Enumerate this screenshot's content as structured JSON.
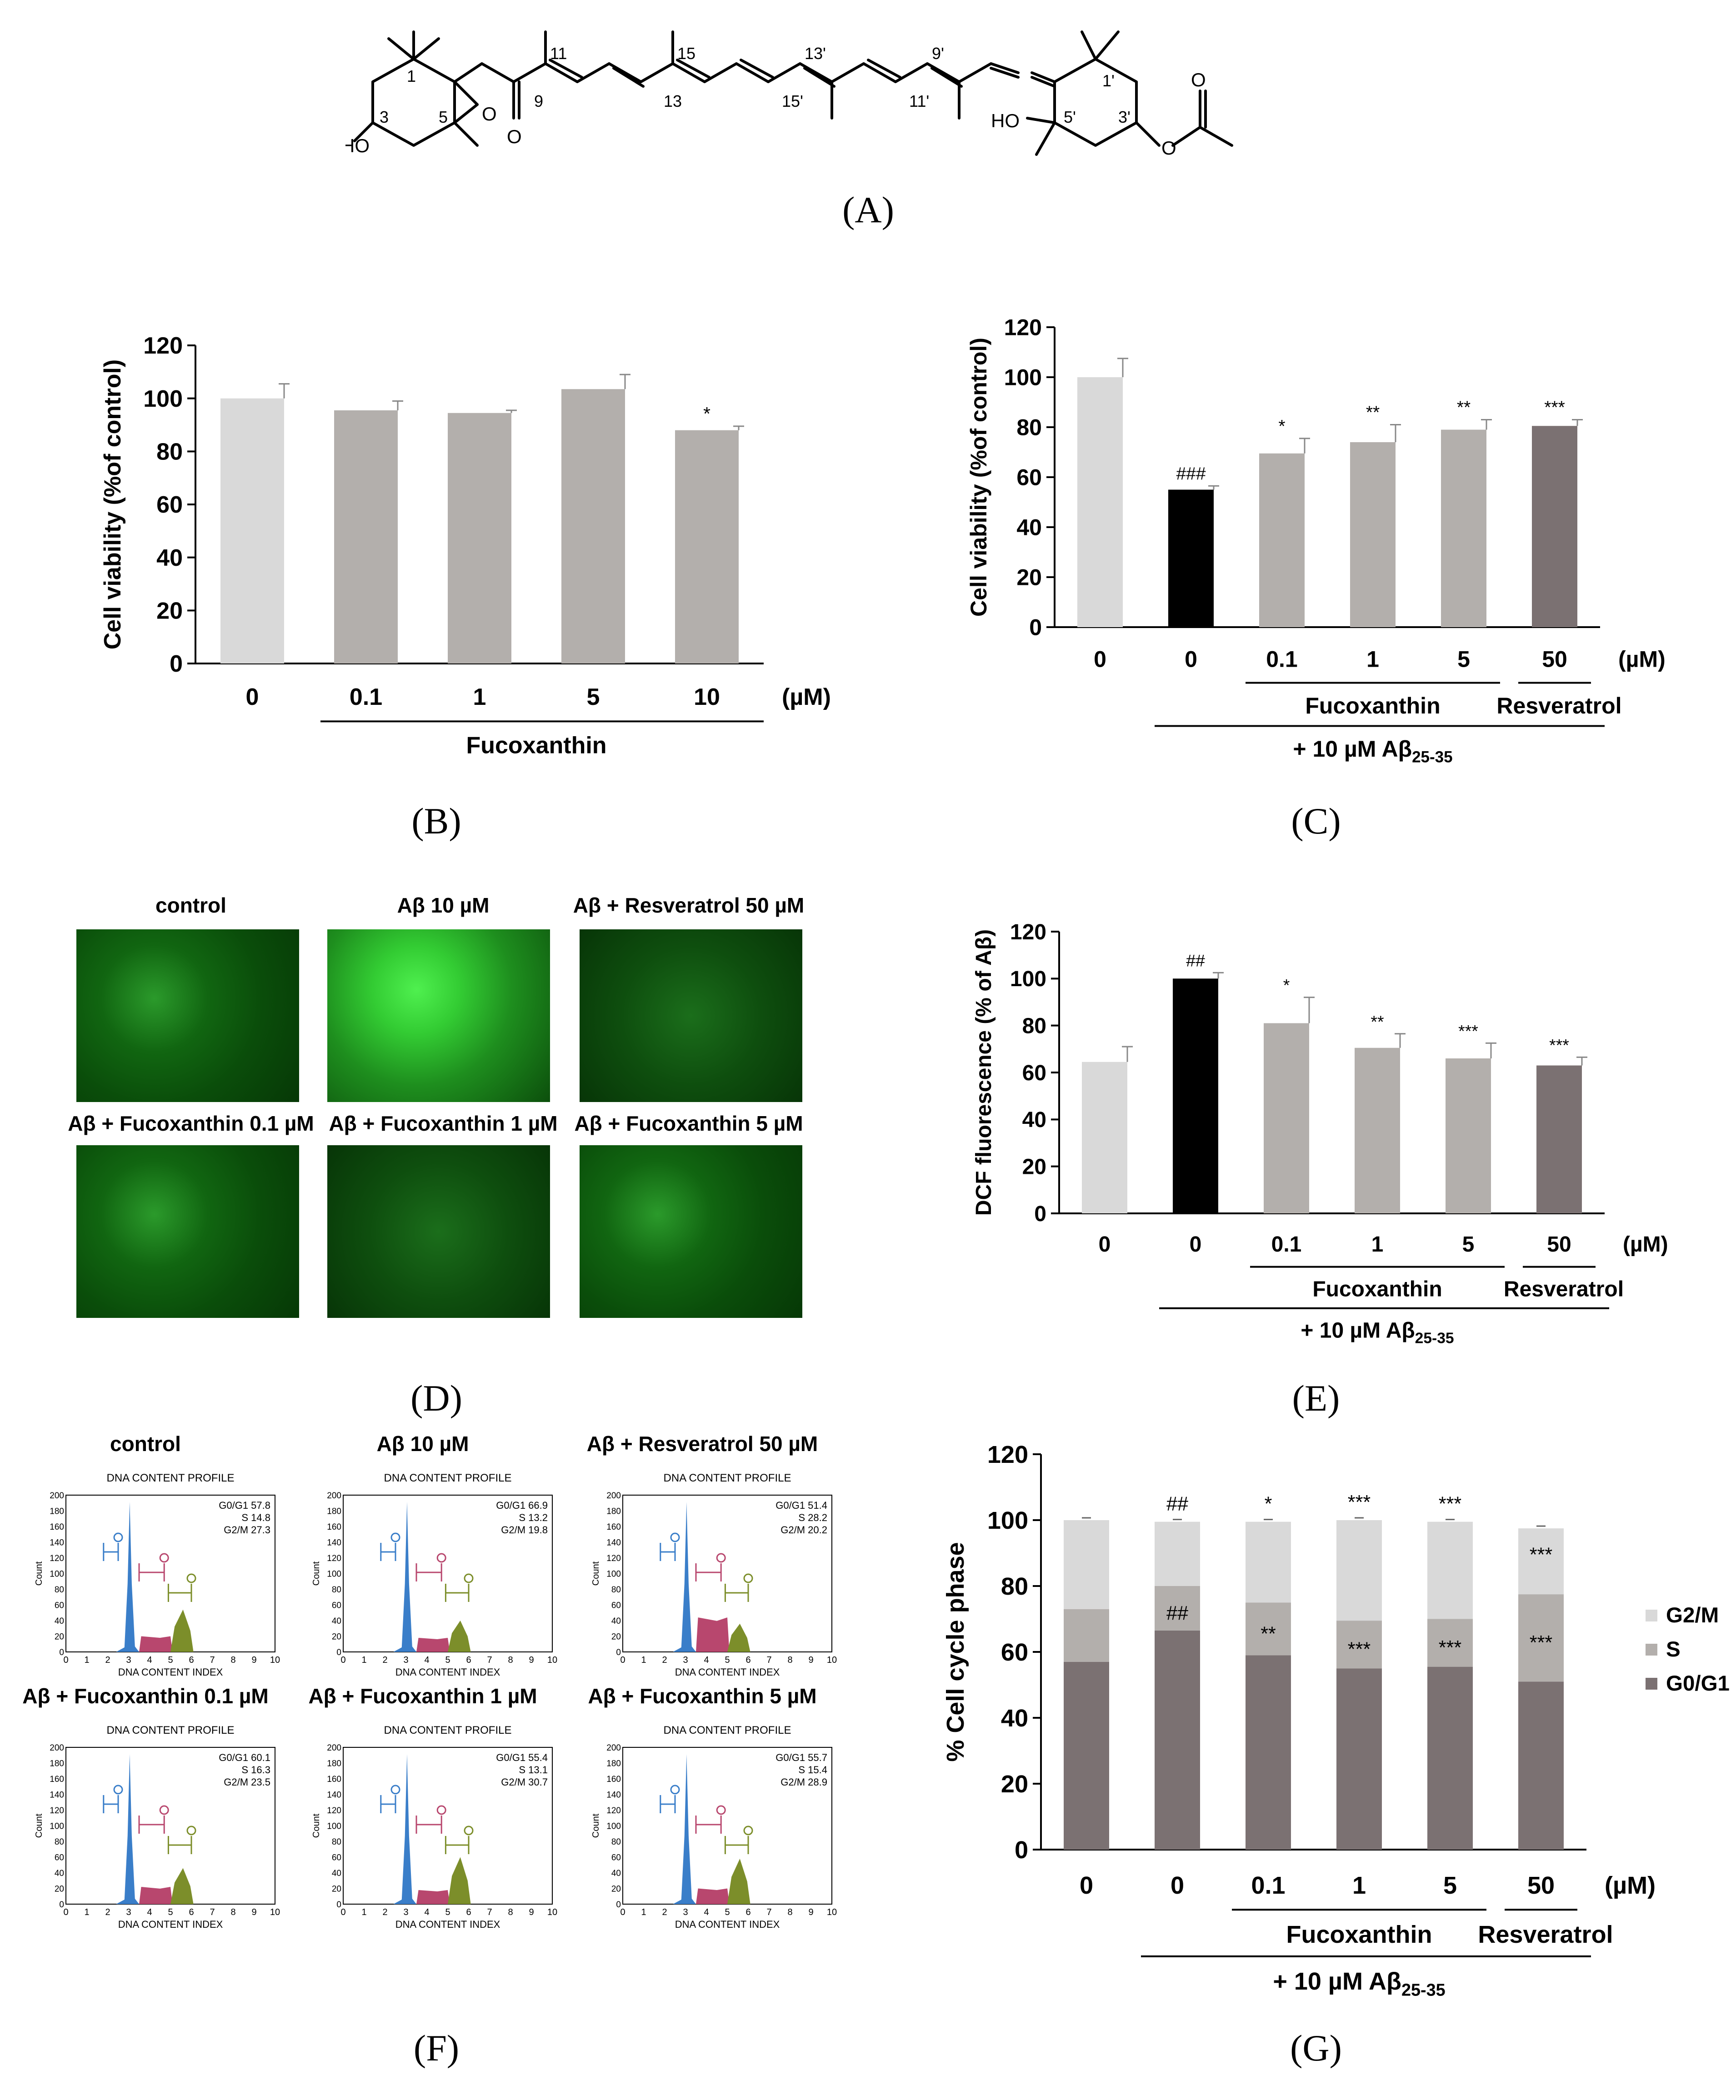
{
  "panels": {
    "A": "(A)",
    "B": "(B)",
    "C": "(C)",
    "D": "(D)",
    "E": "(E)",
    "F": "(F)",
    "G": "(G)"
  },
  "structure": {
    "labels": [
      "11",
      "15",
      "13'",
      "9'",
      "9",
      "13",
      "15'",
      "11'",
      "1",
      "3",
      "5",
      "1'",
      "5'",
      "3'"
    ],
    "atoms": [
      "O",
      "O",
      "O",
      "O",
      "HO",
      "HO"
    ]
  },
  "chart_B": {
    "type": "bar",
    "ylabel": "Cell viability (%of control)",
    "ylim": [
      0,
      120
    ],
    "yticks": [
      "0",
      "20",
      "40",
      "60",
      "80",
      "100",
      "120"
    ],
    "categories": [
      "0",
      "0.1",
      "1",
      "5",
      "10"
    ],
    "values": [
      100,
      95.5,
      94.5,
      103.5,
      88
    ],
    "errors": [
      5.5,
      3.5,
      1,
      5.5,
      1.5
    ],
    "colors": [
      "#d9d9d9",
      "#b3afac",
      "#b3afac",
      "#b3afac",
      "#b3afac"
    ],
    "annotations": [
      "",
      "",
      "",
      "",
      "*"
    ],
    "unit": "(µM)",
    "group_label": "Fucoxanthin"
  },
  "chart_C": {
    "type": "bar",
    "ylabel": "Cell viability (%of control)",
    "ylim": [
      0,
      120
    ],
    "yticks": [
      "0",
      "20",
      "40",
      "60",
      "80",
      "100",
      "120"
    ],
    "categories": [
      "0",
      "0",
      "0.1",
      "1",
      "5",
      "50"
    ],
    "values": [
      100,
      55,
      69.5,
      74,
      79,
      80.5
    ],
    "errors": [
      7.5,
      1.5,
      6,
      7,
      4,
      2.5
    ],
    "colors": [
      "#d9d9d9",
      "#000000",
      "#b3afac",
      "#b3afac",
      "#b3afac",
      "#7b7172"
    ],
    "annotations": [
      "",
      "###",
      "*",
      "**",
      "**",
      "***"
    ],
    "unit": "(µM)",
    "group1": "Fucoxanthin",
    "group2": "Resveratrol",
    "treatment": "+ 10 µM Aβ",
    "treatment_sub": "25-35"
  },
  "micrographs": {
    "titles": [
      "control",
      "Aβ 10 µM",
      "Aβ + Resveratrol 50 µM",
      "Aβ + Fucoxanthin 0.1 µM",
      "Aβ + Fucoxanthin 1 µM",
      "Aβ + Fucoxanthin 5 µM"
    ]
  },
  "chart_E": {
    "type": "bar",
    "ylabel": "DCF fluorescence (% of Aβ)",
    "ylim": [
      0,
      120
    ],
    "yticks": [
      "0",
      "20",
      "40",
      "60",
      "80",
      "100",
      "120"
    ],
    "categories": [
      "0",
      "0",
      "0.1",
      "1",
      "5",
      "50"
    ],
    "values": [
      64.5,
      100,
      81,
      70.5,
      66,
      63
    ],
    "errors": [
      6.5,
      2.5,
      11,
      6,
      6.5,
      3.5
    ],
    "colors": [
      "#d9d9d9",
      "#000000",
      "#b3afac",
      "#b3afac",
      "#b3afac",
      "#7b7172"
    ],
    "annotations": [
      "",
      "##",
      "*",
      "**",
      "***",
      "***"
    ],
    "unit": "(µM)",
    "group1": "Fucoxanthin",
    "group2": "Resveratrol",
    "treatment": "+ 10 µM Aβ",
    "treatment_sub": "25-35"
  },
  "histograms": {
    "titles": [
      "control",
      "Aβ 10 µM",
      "Aβ + Resveratrol 50 µM",
      "Aβ + Fucoxanthin 0.1 µM",
      "Aβ + Fucoxanthin 1 µM",
      "Aβ + Fucoxanthin 5 µM"
    ],
    "header": "DNA CONTENT PROFILE",
    "xlabel": "DNA CONTENT INDEX",
    "ylabel": "Count",
    "yticks": [
      "0",
      "20",
      "40",
      "60",
      "80",
      "100",
      "120",
      "140",
      "160",
      "180",
      "200"
    ],
    "xticks": [
      "0",
      "1",
      "2",
      "3",
      "4",
      "5",
      "6",
      "7",
      "8",
      "9",
      "10"
    ],
    "stats": [
      [
        "G0/G1 57.8",
        "S 14.8",
        "G2/M 27.3"
      ],
      [
        "G0/G1 66.9",
        "S 13.2",
        "G2/M 19.8"
      ],
      [
        "G0/G1 51.4",
        "S 28.2",
        "G2/M 20.2"
      ],
      [
        "G0/G1 60.1",
        "S 16.3",
        "G2/M 23.5"
      ],
      [
        "G0/G1 55.4",
        "S 13.1",
        "G2/M 30.7"
      ],
      [
        "G0/G1 55.7",
        "S 15.4",
        "G2/M 28.9"
      ]
    ],
    "g2m_heights": [
      0.27,
      0.2,
      0.18,
      0.23,
      0.3,
      0.29
    ],
    "s_heights": [
      0.1,
      0.09,
      0.22,
      0.11,
      0.09,
      0.1
    ]
  },
  "chart_G": {
    "type": "bar",
    "stacked": true,
    "ylabel": "% Cell cycle phase",
    "ylim": [
      0,
      120
    ],
    "yticks": [
      "0",
      "20",
      "40",
      "60",
      "80",
      "100",
      "120"
    ],
    "categories": [
      "0",
      "0",
      "0.1",
      "1",
      "5",
      "50"
    ],
    "series": [
      {
        "name": "G0/G1",
        "color": "#7b7172",
        "values": [
          57,
          66.5,
          59,
          55,
          55.5,
          51
        ]
      },
      {
        "name": "S",
        "color": "#b3afac",
        "values": [
          16,
          13.5,
          16,
          14.5,
          14.5,
          26.5
        ]
      },
      {
        "name": "G2/M",
        "color": "#d9d9d9",
        "values": [
          27,
          19.5,
          24.5,
          30.5,
          29.5,
          20
        ]
      }
    ],
    "annotations_top": [
      "",
      "##",
      "*",
      "***",
      "***",
      ""
    ],
    "annotations_s": [
      "",
      "##",
      "**",
      "***",
      "***",
      "***"
    ],
    "annotations_g2m": [
      "",
      "",
      "",
      "",
      "",
      "***"
    ],
    "unit": "(µM)",
    "group1": "Fucoxanthin",
    "group2": "Resveratrol",
    "treatment": "+ 10 µM Aβ",
    "treatment_sub": "25-35"
  }
}
